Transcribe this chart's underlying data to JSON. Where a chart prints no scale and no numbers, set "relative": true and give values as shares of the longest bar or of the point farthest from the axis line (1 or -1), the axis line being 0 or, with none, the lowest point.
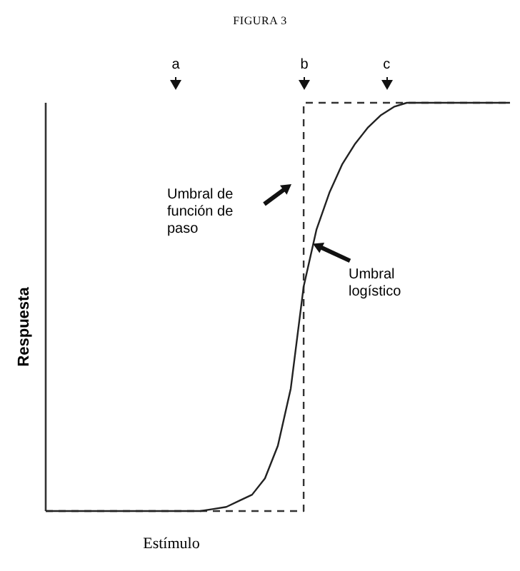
{
  "chart_data": {
    "type": "line",
    "title": "FIGURA 3",
    "xlabel": "Estímulo",
    "ylabel": "Respuesta",
    "relative": true,
    "marker": "none",
    "legend": false,
    "grid": false,
    "categories": [
      null,
      null,
      null,
      null,
      null,
      null,
      null,
      null,
      null,
      null,
      null,
      null,
      null,
      null,
      null,
      null,
      null,
      null,
      null,
      null,
      null,
      null,
      null,
      null,
      null,
      null,
      null,
      null,
      null,
      null,
      null,
      null,
      null,
      null,
      null,
      null,
      null
    ],
    "series": [
      {
        "type": "step",
        "color": "#333333",
        "line_style": "dashed",
        "values": [
          0,
          0,
          0,
          0,
          0,
          0,
          0,
          0,
          0,
          0,
          0,
          0,
          0,
          0,
          0,
          0,
          0,
          0,
          0,
          0,
          1,
          1,
          1,
          1,
          1,
          1,
          1,
          1,
          1,
          1,
          1,
          1,
          1,
          1,
          1,
          1,
          1
        ]
      },
      {
        "type": "line",
        "color": "#222222",
        "line_style": "solid",
        "values": [
          0,
          0,
          0,
          0,
          0,
          0,
          0,
          0,
          0,
          0,
          0,
          0,
          0,
          0.005,
          0.01,
          0.025,
          0.04,
          0.08,
          0.16,
          0.3,
          0.55,
          0.69,
          0.78,
          0.85,
          0.9,
          0.94,
          0.97,
          0.99,
          1,
          1,
          1,
          1,
          1,
          1,
          1,
          1,
          1
        ]
      }
    ],
    "annotations": [
      "a",
      "b",
      "c",
      "Umbral de función de paso",
      "Umbral logístico"
    ]
  }
}
